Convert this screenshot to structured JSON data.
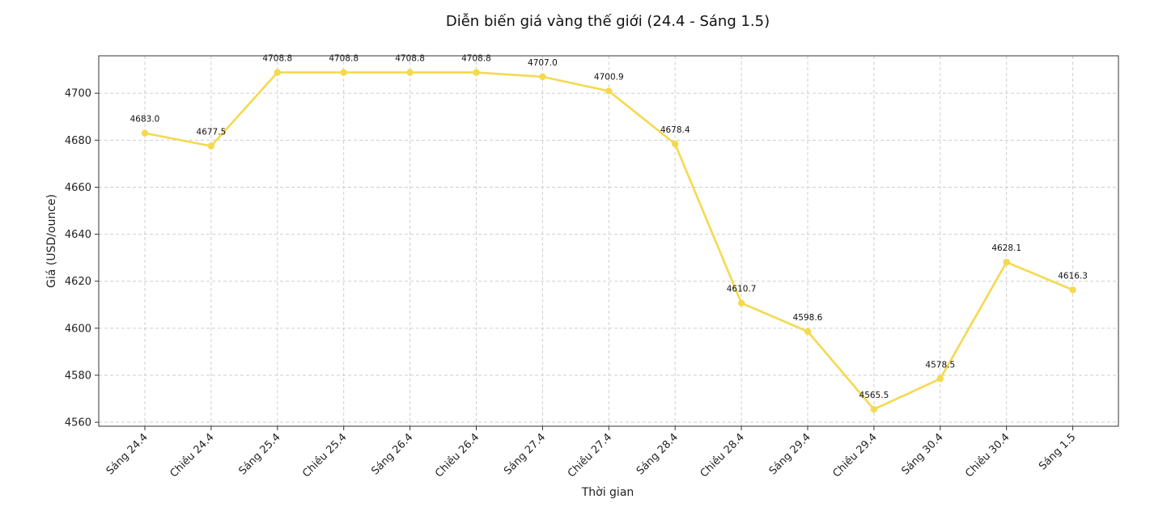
{
  "chart_data": {
    "type": "line",
    "title": "Diễn biến giá vàng thế giới (24.4 - Sáng 1.5)",
    "xlabel": "Thời gian",
    "ylabel": "Giá (USD/ounce)",
    "categories": [
      "Sáng 24.4",
      "Chiều 24.4",
      "Sáng 25.4",
      "Chiều 25.4",
      "Sáng 26.4",
      "Chiều 26.4",
      "Sáng 27.4",
      "Chiều 27.4",
      "Sáng 28.4",
      "Chiều 28.4",
      "Sáng 29.4",
      "Chiều 29.4",
      "Sáng 30.4",
      "Chiều 30.4",
      "Sáng 1.5"
    ],
    "values": [
      4683.0,
      4677.5,
      4708.8,
      4708.8,
      4708.8,
      4708.8,
      4707.0,
      4700.9,
      4678.4,
      4610.7,
      4598.6,
      4565.5,
      4578.5,
      4628.1,
      4616.3
    ],
    "value_labels": [
      "4683.0",
      "4677.5",
      "4708.8",
      "4708.8",
      "4708.8",
      "4708.8",
      "4707.0",
      "4700.9",
      "4678.4",
      "4610.7",
      "4598.6",
      "4565.5",
      "4578.5",
      "4628.1",
      "4616.3"
    ],
    "ylim": [
      4558.3,
      4715.9
    ],
    "yticks": [
      4560,
      4580,
      4600,
      4620,
      4640,
      4660,
      4680,
      4700
    ],
    "grid": true,
    "legend": "none",
    "line_color": "#F5D94E",
    "marker_color": "#F5D94E"
  }
}
